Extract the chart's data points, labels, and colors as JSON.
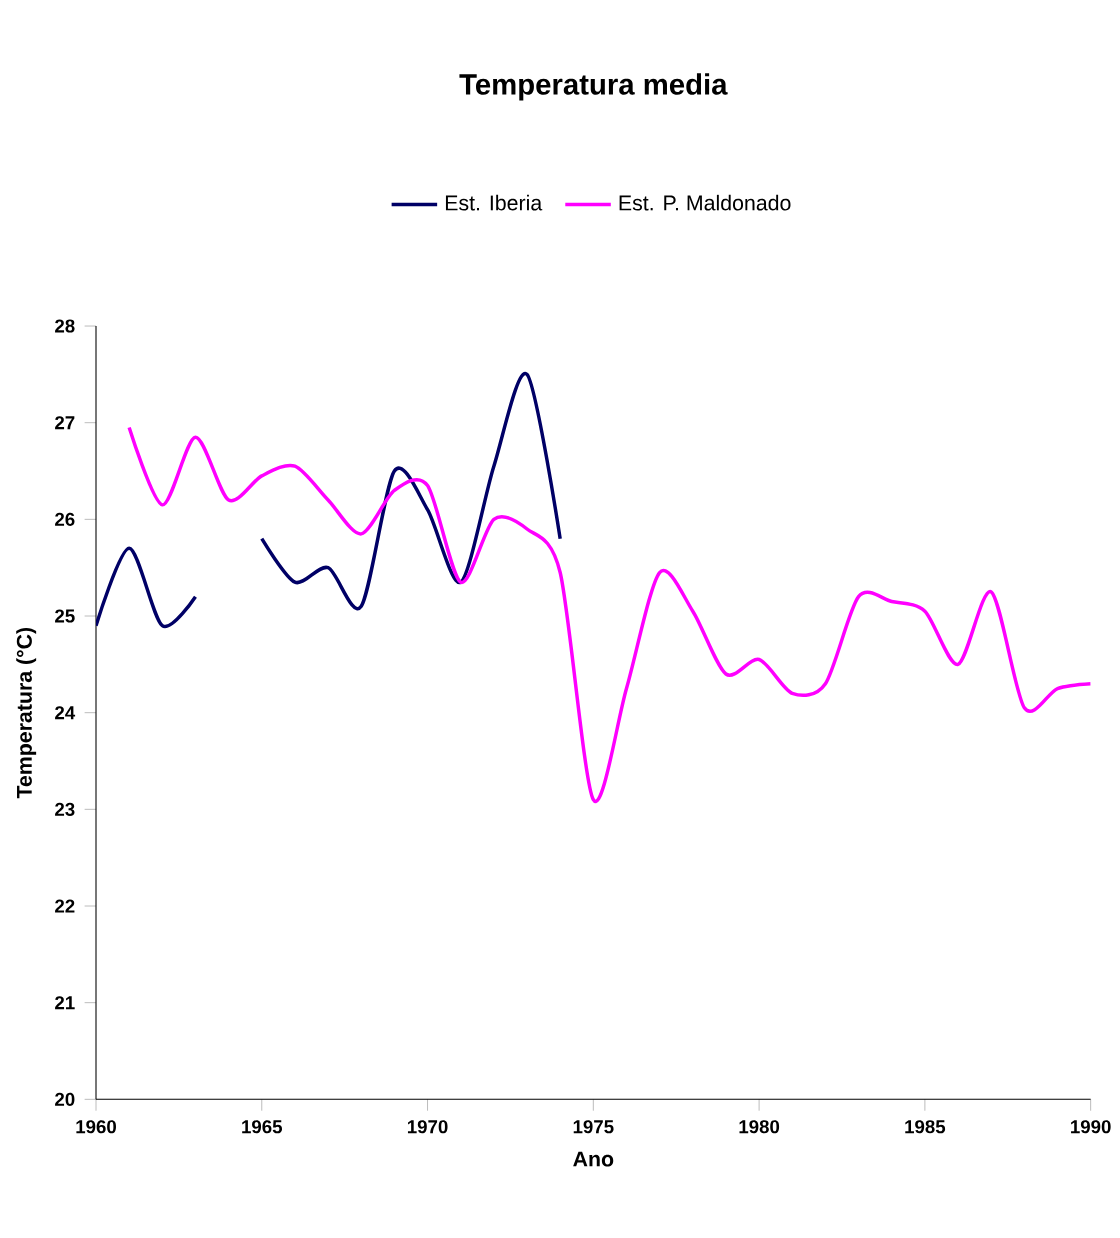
{
  "chart_data": {
    "type": "line",
    "title": "Temperatura media",
    "xlabel": "Ano",
    "ylabel": "Temperatura (°C)",
    "x": [
      1960,
      1961,
      1962,
      1963,
      1964,
      1965,
      1966,
      1967,
      1968,
      1969,
      1970,
      1971,
      1972,
      1973,
      1974,
      1975,
      1976,
      1977,
      1978,
      1979,
      1980,
      1981,
      1982,
      1983,
      1984,
      1985,
      1986,
      1987,
      1988,
      1989,
      1990
    ],
    "series": [
      {
        "name": "Est. Iberia",
        "color": "#000066",
        "values": [
          24.9,
          25.7,
          24.9,
          25.2,
          null,
          25.8,
          25.35,
          25.5,
          25.1,
          26.5,
          26.1,
          25.35,
          26.55,
          27.5,
          25.8,
          null,
          null,
          null,
          null,
          null,
          null,
          null,
          null,
          null,
          null,
          null,
          null,
          null,
          null,
          null,
          null
        ]
      },
      {
        "name": "Est. P. Maldonado",
        "color": "#ff00ff",
        "values": [
          null,
          26.95,
          26.15,
          26.85,
          26.2,
          26.45,
          26.55,
          26.2,
          25.85,
          26.3,
          26.35,
          25.35,
          26.0,
          25.9,
          25.45,
          23.1,
          24.25,
          25.45,
          25.05,
          24.4,
          24.55,
          24.2,
          24.3,
          25.2,
          25.15,
          25.05,
          24.5,
          25.25,
          24.05,
          24.25,
          24.3
        ]
      }
    ],
    "xlim": [
      1960,
      1990
    ],
    "xticks": [
      1960,
      1965,
      1970,
      1975,
      1980,
      1985,
      1990
    ],
    "ylim": [
      20,
      28
    ],
    "yticks": [
      20,
      21,
      22,
      23,
      24,
      25,
      26,
      27,
      28
    ],
    "legend": "top",
    "grid": false,
    "marker": "none",
    "line_style": "solid"
  }
}
